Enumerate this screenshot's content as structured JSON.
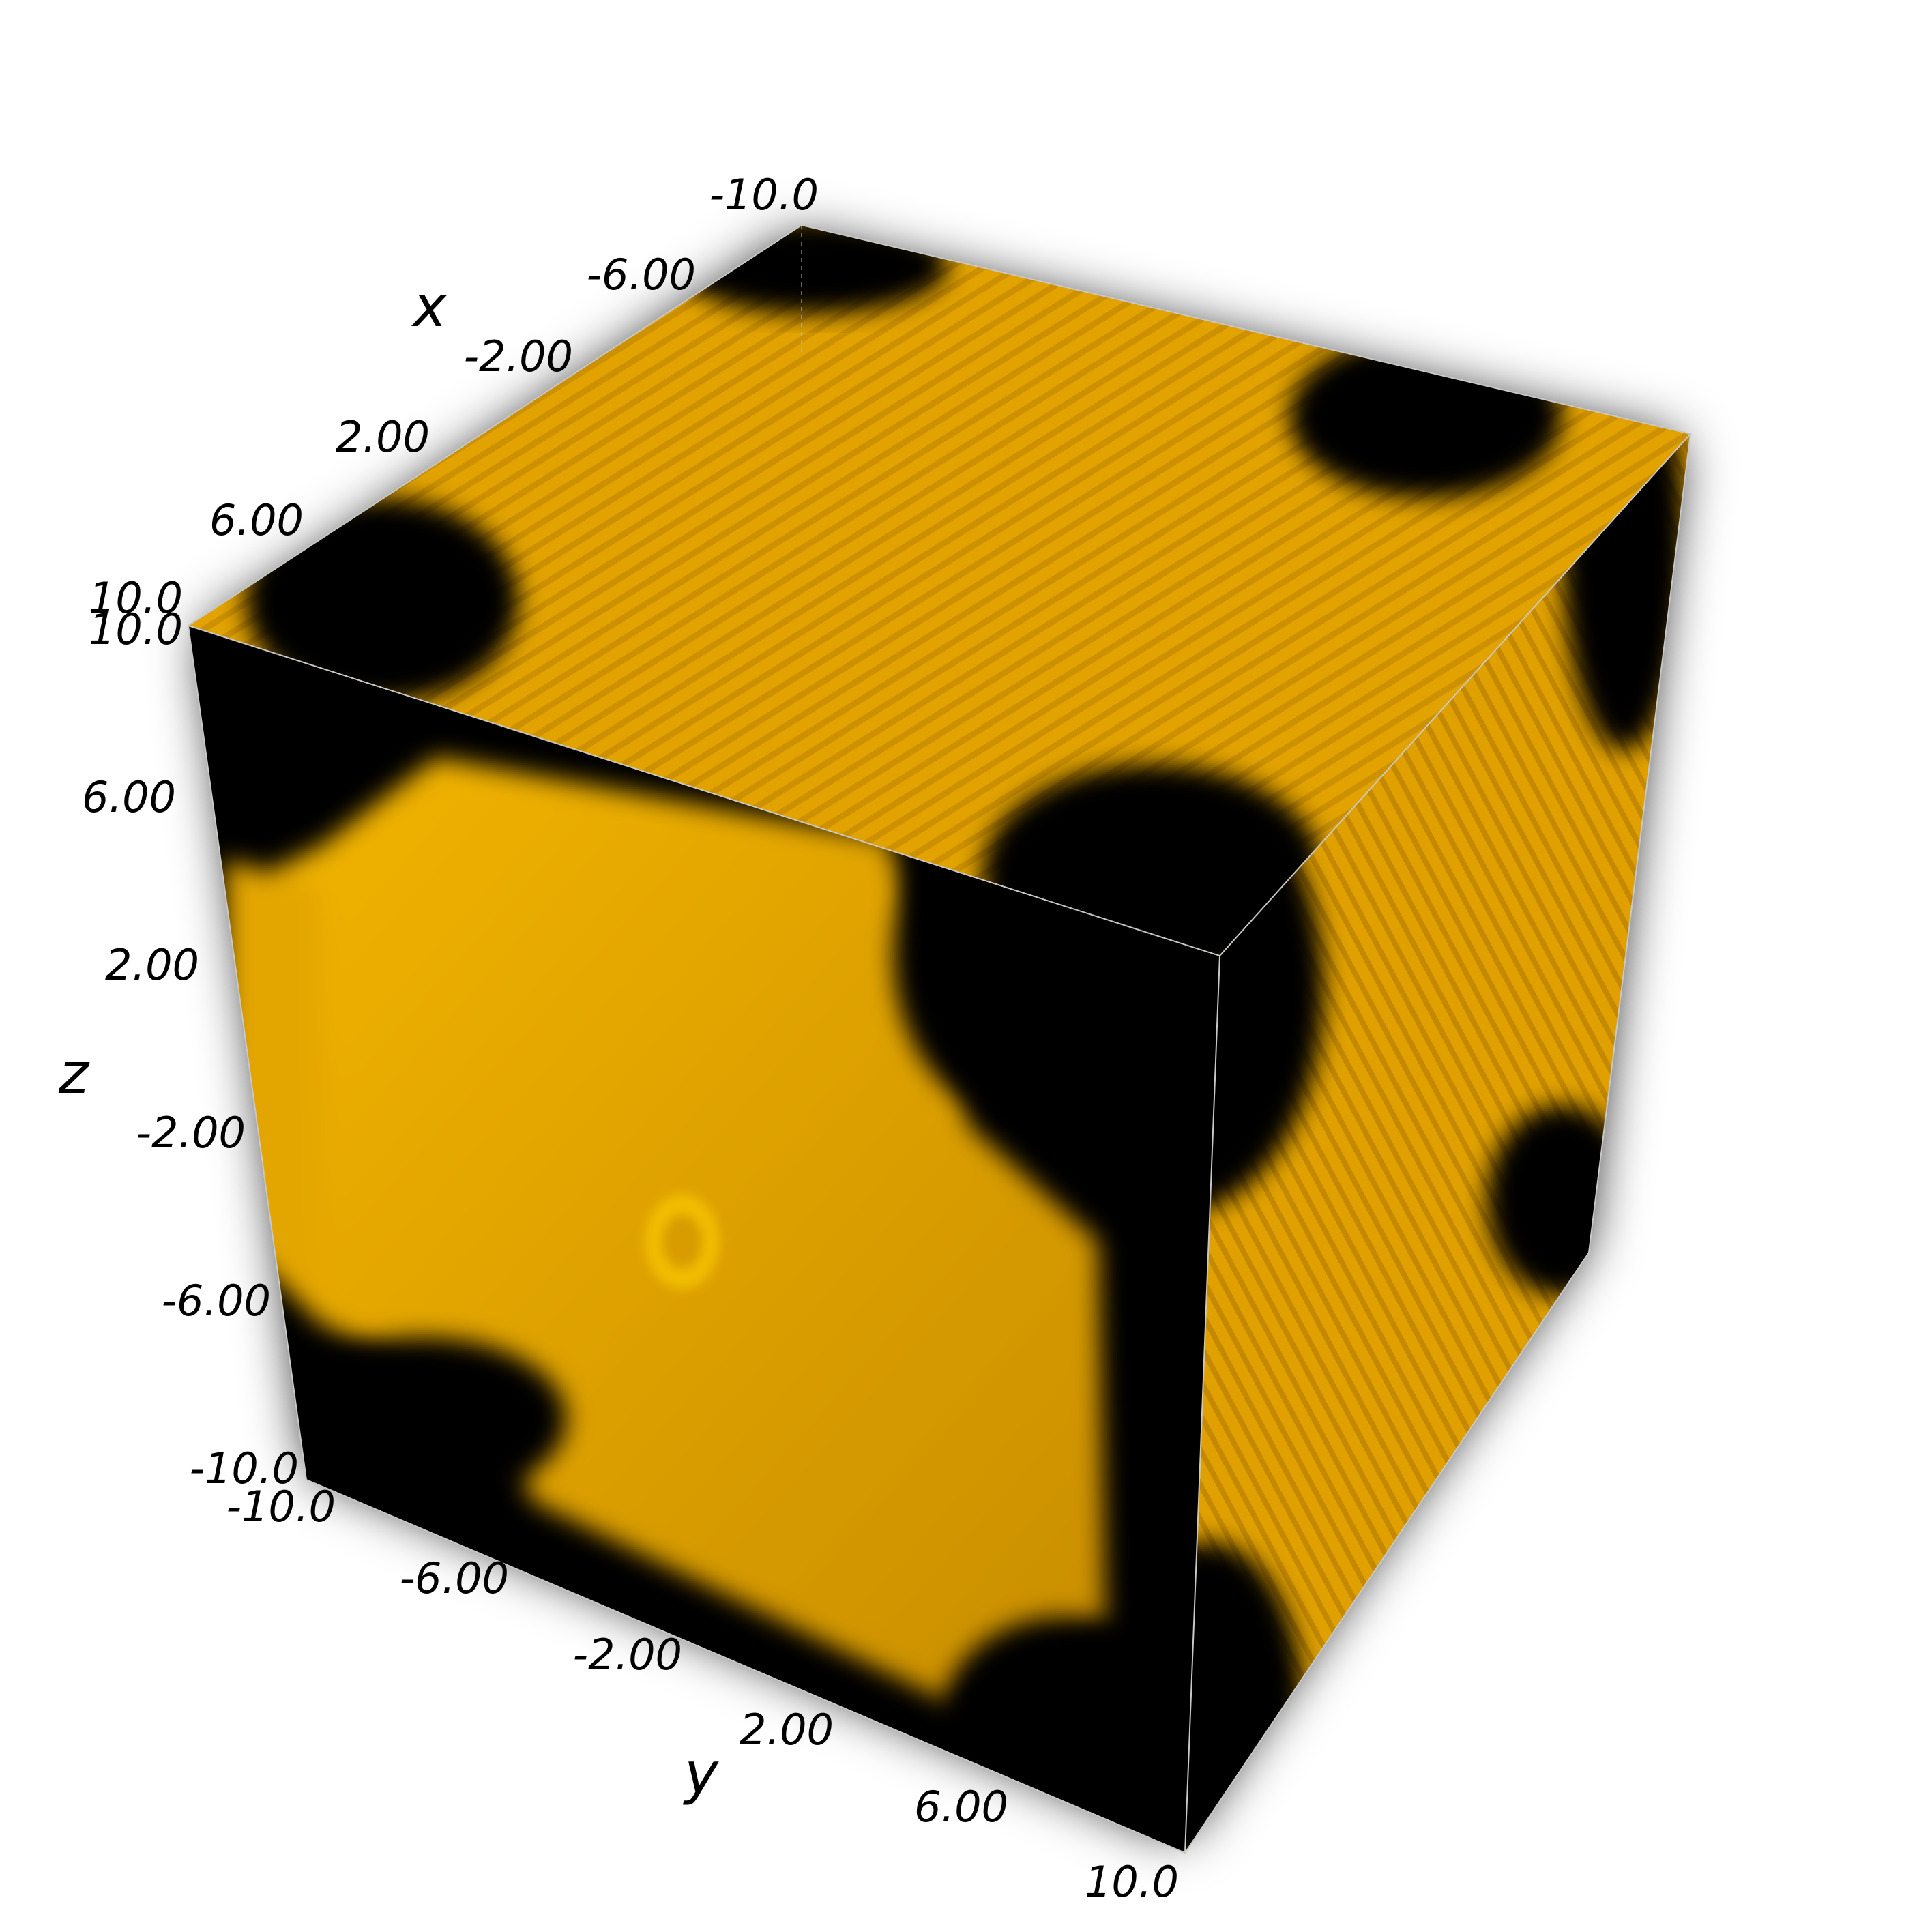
{
  "chart_data": {
    "type": "volume",
    "axes": {
      "x": {
        "label": "x",
        "range": [
          -10.0,
          10.0
        ],
        "ticks": [
          "-10.0",
          "-6.00",
          "-2.00",
          "2.00",
          "6.00",
          "10.0"
        ]
      },
      "y": {
        "label": "y",
        "range": [
          -10.0,
          10.0
        ],
        "ticks": [
          "-10.0",
          "-6.00",
          "-2.00",
          "2.00",
          "6.00",
          "10.0"
        ]
      },
      "z": {
        "label": "z",
        "range": [
          -10.0,
          10.0
        ],
        "ticks": [
          "-10.0",
          "-6.00",
          "-2.00",
          "2.00",
          "6.00",
          "10.0"
        ]
      }
    },
    "colors": {
      "volume": "#e6a800",
      "background_fog": "#000000",
      "page": "#ffffff"
    },
    "grid": false,
    "legend": "none"
  }
}
